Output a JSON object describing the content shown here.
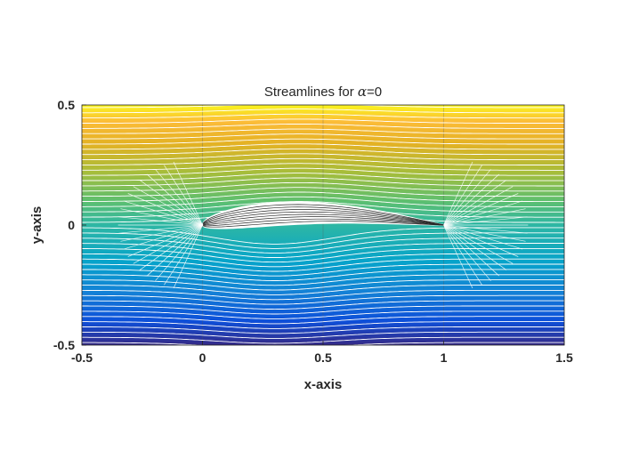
{
  "chart_data": {
    "type": "contour",
    "title_prefix": "Streamlines for ",
    "title_symbol": "α",
    "title_suffix": "=0",
    "xlabel": "x-axis",
    "ylabel": "y-axis",
    "xlim": [
      -0.5,
      1.5
    ],
    "ylim": [
      -0.5,
      0.5
    ],
    "xticks": [
      -0.5,
      0,
      0.5,
      1,
      1.5
    ],
    "xtick_labels": [
      "-0.5",
      "0",
      "0.5",
      "1",
      "1.5"
    ],
    "yticks": [
      -0.5,
      0,
      0.5
    ],
    "ytick_labels": [
      "-0.5",
      "0",
      "0.5"
    ],
    "alpha_deg": 0,
    "colormap": "parula",
    "colors": {
      "low": "#3e26a8",
      "mid": "#2ab6a5",
      "high": "#f9fb15",
      "streamline": "#ffffff",
      "airfoil": "#ffffff"
    },
    "grid": "x-only"
  }
}
